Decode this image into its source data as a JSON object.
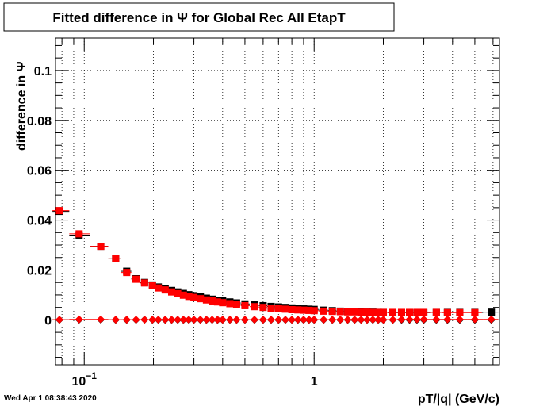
{
  "title": "Fitted difference in  Ψ  for Global Rec All EtapT",
  "timestamp": "Wed Apr  1 08:38:43 2020",
  "chart_data": {
    "type": "scatter",
    "title": "Fitted difference in  Ψ  for Global Rec All EtapT",
    "xlabel": "pT/|q| (GeV/c)",
    "ylabel": "difference in  Ψ",
    "x_scale": "log",
    "xlim": [
      0.075,
      6.4
    ],
    "ylim": [
      -0.018,
      0.113
    ],
    "grid": true,
    "x_tick_labels": [
      {
        "value": 0.1,
        "base": "10",
        "exp": "−1"
      },
      {
        "value": 1,
        "base": "1",
        "exp": ""
      }
    ],
    "y_tick_labels": [
      {
        "value": 0,
        "label": "0"
      },
      {
        "value": 0.02,
        "label": "0.02"
      },
      {
        "value": 0.04,
        "label": "0.04"
      },
      {
        "value": 0.06,
        "label": "0.06"
      },
      {
        "value": 0.08,
        "label": "0.08"
      },
      {
        "value": 0.1,
        "label": "0.1"
      }
    ],
    "series": [
      {
        "marker": "square",
        "color": "#000000",
        "x": [
          0.078,
          0.095,
          0.118,
          0.137,
          0.153,
          0.168,
          0.183,
          0.198,
          0.21,
          0.225,
          0.24,
          0.255,
          0.27,
          0.285,
          0.3,
          0.32,
          0.34,
          0.36,
          0.38,
          0.4,
          0.43,
          0.46,
          0.5,
          0.55,
          0.6,
          0.65,
          0.7,
          0.75,
          0.8,
          0.85,
          0.9,
          0.95,
          1.0,
          1.1,
          1.2,
          1.3,
          1.4,
          1.5,
          1.6,
          1.7,
          1.8,
          1.9,
          2.0,
          2.2,
          2.4,
          2.6,
          2.8,
          3.0,
          3.4,
          3.8,
          4.3,
          5.0,
          5.9
        ],
        "y": [
          0.0435,
          0.034,
          0.0295,
          0.0245,
          0.0195,
          0.0165,
          0.015,
          0.014,
          0.0132,
          0.0125,
          0.0118,
          0.0112,
          0.0106,
          0.0101,
          0.0097,
          0.0092,
          0.0087,
          0.0083,
          0.0079,
          0.0076,
          0.0072,
          0.0068,
          0.0064,
          0.006,
          0.0057,
          0.0054,
          0.0052,
          0.005,
          0.0048,
          0.0046,
          0.0044,
          0.0043,
          0.0042,
          0.0039,
          0.0037,
          0.0035,
          0.0034,
          0.0033,
          0.0032,
          0.0031,
          0.0031,
          0.003,
          0.003,
          0.0029,
          0.0029,
          0.0029,
          0.0029,
          0.0029,
          0.003,
          0.003,
          0.003,
          0.003,
          0.0031
        ]
      },
      {
        "marker": "square",
        "color": "#ff0000",
        "x": [
          0.078,
          0.095,
          0.118,
          0.137,
          0.153,
          0.168,
          0.183,
          0.198,
          0.21,
          0.225,
          0.24,
          0.255,
          0.27,
          0.285,
          0.3,
          0.32,
          0.34,
          0.36,
          0.38,
          0.4,
          0.43,
          0.46,
          0.5,
          0.55,
          0.6,
          0.65,
          0.7,
          0.75,
          0.8,
          0.85,
          0.9,
          0.95,
          1.0,
          1.1,
          1.2,
          1.3,
          1.4,
          1.5,
          1.6,
          1.7,
          1.8,
          1.9,
          2.0,
          2.2,
          2.4,
          2.6,
          2.8,
          3.0,
          3.4,
          3.8,
          4.3,
          5.0
        ],
        "y": [
          0.0438,
          0.0345,
          0.0295,
          0.0245,
          0.019,
          0.0163,
          0.0148,
          0.0138,
          0.0128,
          0.012,
          0.0112,
          0.0105,
          0.0099,
          0.0094,
          0.009,
          0.0085,
          0.008,
          0.0076,
          0.0072,
          0.0069,
          0.0065,
          0.0061,
          0.0057,
          0.0053,
          0.005,
          0.0047,
          0.0045,
          0.0043,
          0.0041,
          0.004,
          0.0039,
          0.0038,
          0.0037,
          0.0035,
          0.0034,
          0.0033,
          0.0032,
          0.0032,
          0.0031,
          0.0031,
          0.003,
          0.003,
          0.003,
          0.003,
          0.003,
          0.003,
          0.003,
          0.003,
          0.003,
          0.0029,
          0.0029,
          0.0029
        ]
      },
      {
        "marker": "diamond",
        "color": "#000000",
        "x": [
          0.078,
          0.095,
          0.118,
          0.137,
          0.153,
          0.168,
          0.183,
          0.198,
          0.21,
          0.225,
          0.24,
          0.255,
          0.27,
          0.285,
          0.3,
          0.32,
          0.34,
          0.36,
          0.38,
          0.4,
          0.43,
          0.46,
          0.5,
          0.55,
          0.6,
          0.65,
          0.7,
          0.75,
          0.8,
          0.85,
          0.9,
          0.95,
          1.0,
          1.1,
          1.2,
          1.3,
          1.4,
          1.5,
          1.6,
          1.7,
          1.8,
          1.9,
          2.0,
          2.2,
          2.4,
          2.6,
          2.8,
          3.0,
          3.4,
          3.8,
          4.3,
          5.0,
          5.9
        ],
        "y": [
          0,
          0.0001,
          0.0001,
          0,
          0,
          0,
          0.0001,
          0,
          0,
          0,
          0,
          0,
          0,
          0,
          0,
          0,
          0,
          0,
          0,
          0,
          0,
          0,
          0,
          0,
          0,
          0,
          0,
          0,
          0,
          0,
          0,
          0,
          0,
          0,
          0,
          0,
          0,
          0,
          0,
          0,
          0,
          0,
          0,
          0,
          0,
          0,
          0,
          0,
          0,
          0,
          0,
          0,
          0
        ]
      },
      {
        "marker": "diamond",
        "color": "#ff0000",
        "x": [
          0.078,
          0.095,
          0.118,
          0.137,
          0.153,
          0.168,
          0.183,
          0.198,
          0.21,
          0.225,
          0.24,
          0.255,
          0.27,
          0.285,
          0.3,
          0.32,
          0.34,
          0.36,
          0.38,
          0.4,
          0.43,
          0.46,
          0.5,
          0.55,
          0.6,
          0.65,
          0.7,
          0.75,
          0.8,
          0.85,
          0.9,
          0.95,
          1.0,
          1.1,
          1.2,
          1.3,
          1.4,
          1.5,
          1.6,
          1.7,
          1.8,
          1.9,
          2.0,
          2.2,
          2.4,
          2.6,
          2.8,
          3.0,
          3.4,
          3.8,
          4.3,
          5.0,
          5.9
        ],
        "y": [
          0.0001,
          0.0002,
          0.0002,
          0.0001,
          0.0001,
          0.0001,
          0.0001,
          0.0001,
          0.0001,
          0.0001,
          0.0001,
          0.0001,
          0.0001,
          0.0001,
          0.0001,
          0.0001,
          0.0001,
          0.0001,
          0.0001,
          0.0001,
          0.0001,
          0.0001,
          0.0001,
          0.0001,
          0.0001,
          0.0001,
          0.0001,
          0.0001,
          0.0001,
          0.0001,
          0.0001,
          0.0001,
          0.0001,
          0.0001,
          0.0001,
          0.0001,
          0.0001,
          0.0001,
          0.0001,
          0.0001,
          0.0001,
          0.0001,
          0.0001,
          0.0001,
          0.0002,
          0.0002,
          0.0002,
          0.0002,
          0.0002,
          0.0002,
          0.0002,
          0.0002,
          0.0002
        ]
      }
    ]
  }
}
